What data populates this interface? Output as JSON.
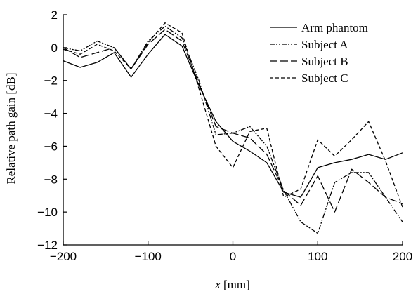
{
  "chart_data": {
    "type": "line",
    "title": "",
    "xlabel_var": "x",
    "xlabel_unit": " [mm]",
    "ylabel": "Relative path gain [dB]",
    "xlim": [
      -200,
      200
    ],
    "ylim": [
      -12,
      2
    ],
    "xticks": [
      -200,
      -100,
      0,
      100,
      200
    ],
    "xtick_labels": [
      "−200",
      "−100",
      "0",
      "100",
      "200"
    ],
    "yticks": [
      2,
      0,
      -2,
      -4,
      -6,
      -8,
      -10,
      -12
    ],
    "ytick_labels": [
      "2",
      "0",
      "−2",
      "−4",
      "−6",
      "−8",
      "−10",
      "−12"
    ],
    "grid": false,
    "legend_position": "top-right",
    "x": [
      -200,
      -180,
      -160,
      -140,
      -120,
      -100,
      -80,
      -60,
      -40,
      -20,
      0,
      20,
      40,
      60,
      80,
      100,
      120,
      140,
      160,
      180,
      200
    ],
    "series": [
      {
        "name": "Arm phantom",
        "style": "solid",
        "values": [
          -0.8,
          -1.2,
          -0.9,
          -0.3,
          -1.8,
          -0.4,
          0.8,
          0.1,
          -2.3,
          -4.5,
          -5.7,
          -6.3,
          -7.0,
          -8.8,
          -9.1,
          -7.3,
          -7.0,
          -6.8,
          -6.5,
          -6.8,
          -6.4
        ]
      },
      {
        "name": "Subject A",
        "style": "dash-dot-dot",
        "values": [
          0.0,
          -0.2,
          0.4,
          0.0,
          -1.3,
          0.4,
          1.3,
          0.6,
          -2.0,
          -5.3,
          -5.2,
          -4.8,
          -6.0,
          -8.7,
          -10.6,
          -11.3,
          -8.2,
          -7.6,
          -7.6,
          -9.1,
          -10.6
        ]
      },
      {
        "name": "Subject B",
        "style": "long-dash",
        "values": [
          0.0,
          -0.6,
          -0.3,
          0.0,
          -1.3,
          0.2,
          1.1,
          0.4,
          -2.2,
          -4.8,
          -5.2,
          -5.5,
          -6.5,
          -8.7,
          -9.6,
          -7.8,
          -10.0,
          -7.4,
          -8.2,
          -9.1,
          -9.5
        ]
      },
      {
        "name": "Subject C",
        "style": "dash",
        "values": [
          -0.1,
          -0.4,
          0.2,
          -0.2,
          -1.3,
          0.3,
          1.5,
          0.9,
          -2.5,
          -6.0,
          -7.3,
          -5.1,
          -4.9,
          -9.1,
          -8.6,
          -5.6,
          -6.6,
          -5.6,
          -4.5,
          -6.9,
          -9.7
        ]
      }
    ]
  }
}
